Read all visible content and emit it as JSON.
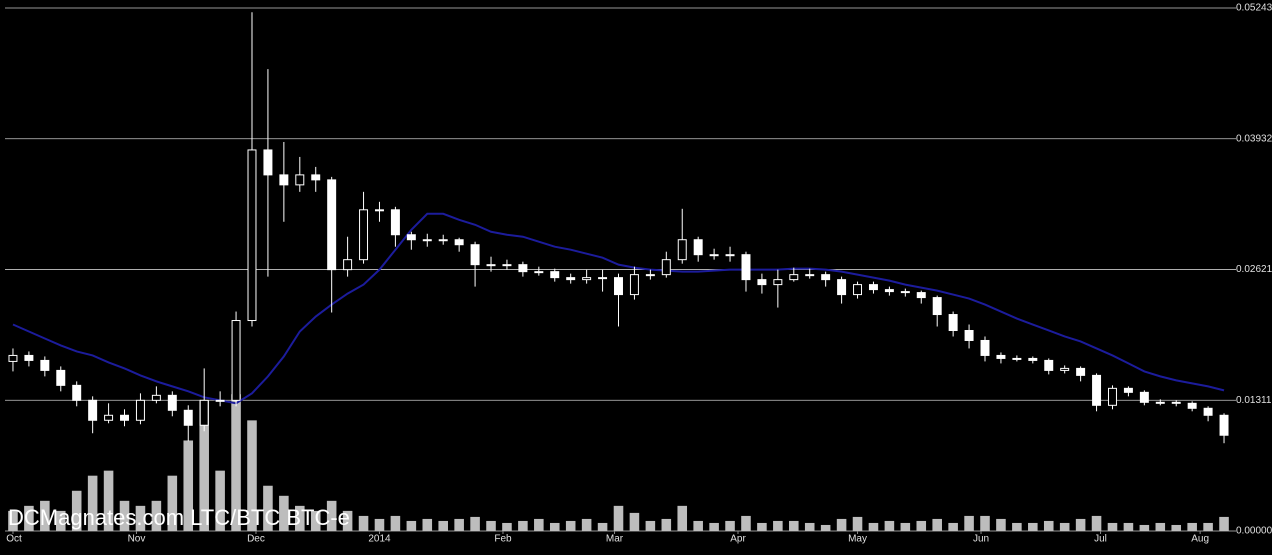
{
  "chart_data": {
    "type": "candlestick",
    "title": "DCMagnates.com LTC/BTC BTC-e",
    "x": [
      0,
      4,
      8,
      12,
      16,
      20,
      24,
      28,
      32,
      36,
      40,
      44,
      48,
      52,
      56,
      60,
      64,
      68,
      72,
      76,
      80,
      84,
      88,
      92,
      96,
      100,
      104,
      108,
      112,
      116,
      120,
      124,
      128,
      132,
      136,
      140,
      144,
      148,
      152,
      156,
      160,
      164,
      168,
      172,
      176,
      180,
      184,
      188,
      192,
      196,
      200,
      204,
      208,
      212,
      216,
      220,
      224,
      228,
      232,
      236,
      240,
      244,
      248,
      252,
      256,
      260,
      264,
      268,
      272,
      276,
      280,
      284,
      288,
      292,
      296,
      300,
      304
    ],
    "open": [
      0.017,
      0.0176,
      0.0171,
      0.0161,
      0.0146,
      0.0131,
      0.0111,
      0.0116,
      0.0111,
      0.0131,
      0.0136,
      0.0121,
      0.0106,
      0.0131,
      0.0131,
      0.0211,
      0.0382,
      0.0357,
      0.0347,
      0.0357,
      0.0352,
      0.0262,
      0.0272,
      0.0322,
      0.0322,
      0.0297,
      0.0292,
      0.0292,
      0.0292,
      0.0287,
      0.0267,
      0.0267,
      0.0267,
      0.026,
      0.026,
      0.0254,
      0.0252,
      0.0254,
      0.0254,
      0.0237,
      0.0257,
      0.0257,
      0.0272,
      0.0292,
      0.0277,
      0.0277,
      0.0277,
      0.0252,
      0.0247,
      0.0252,
      0.0257,
      0.0257,
      0.0252,
      0.0237,
      0.0247,
      0.0242,
      0.024,
      0.0239,
      0.0234,
      0.0217,
      0.0201,
      0.0191,
      0.0176,
      0.0173,
      0.0173,
      0.0171,
      0.0161,
      0.0163,
      0.0156,
      0.0126,
      0.0143,
      0.0139,
      0.0129,
      0.0129,
      0.0128,
      0.0123,
      0.0116
    ],
    "high": [
      0.0183,
      0.018,
      0.0175,
      0.0165,
      0.015,
      0.0135,
      0.0128,
      0.0122,
      0.0138,
      0.0145,
      0.014,
      0.0126,
      0.0163,
      0.014,
      0.022,
      0.052,
      0.0463,
      0.039,
      0.0375,
      0.0365,
      0.0355,
      0.0295,
      0.034,
      0.033,
      0.0325,
      0.03,
      0.0298,
      0.0297,
      0.0294,
      0.029,
      0.0275,
      0.0272,
      0.027,
      0.0265,
      0.0263,
      0.0258,
      0.0262,
      0.0262,
      0.0258,
      0.0265,
      0.0262,
      0.028,
      0.0323,
      0.0295,
      0.0283,
      0.0285,
      0.028,
      0.0258,
      0.0262,
      0.0264,
      0.0263,
      0.026,
      0.0255,
      0.025,
      0.025,
      0.0245,
      0.0243,
      0.0241,
      0.0236,
      0.022,
      0.0207,
      0.0195,
      0.0179,
      0.0176,
      0.0175,
      0.0173,
      0.0166,
      0.0165,
      0.0158,
      0.0146,
      0.0145,
      0.0141,
      0.0132,
      0.0131,
      0.013,
      0.0125,
      0.0118
    ],
    "low": [
      0.016,
      0.0165,
      0.0155,
      0.014,
      0.0125,
      0.0098,
      0.0108,
      0.0105,
      0.0107,
      0.0128,
      0.0115,
      0.009,
      0.01,
      0.0125,
      0.0125,
      0.0205,
      0.0255,
      0.031,
      0.034,
      0.034,
      0.0219,
      0.0255,
      0.0268,
      0.031,
      0.0285,
      0.0282,
      0.0285,
      0.0287,
      0.028,
      0.0245,
      0.026,
      0.0262,
      0.0255,
      0.0256,
      0.025,
      0.0248,
      0.0248,
      0.024,
      0.0205,
      0.0232,
      0.0252,
      0.0254,
      0.0268,
      0.027,
      0.0272,
      0.027,
      0.024,
      0.0238,
      0.0224,
      0.025,
      0.0253,
      0.0245,
      0.0228,
      0.0233,
      0.0238,
      0.0236,
      0.0235,
      0.0228,
      0.0205,
      0.0195,
      0.0183,
      0.017,
      0.0168,
      0.017,
      0.0168,
      0.0157,
      0.0158,
      0.015,
      0.012,
      0.0122,
      0.0135,
      0.0126,
      0.0126,
      0.0125,
      0.012,
      0.011,
      0.0088
    ],
    "close": [
      0.0176,
      0.0171,
      0.0161,
      0.0146,
      0.0131,
      0.0111,
      0.0116,
      0.0111,
      0.0131,
      0.0136,
      0.0121,
      0.0106,
      0.0131,
      0.0131,
      0.0211,
      0.0382,
      0.0357,
      0.0347,
      0.0357,
      0.0352,
      0.0262,
      0.0272,
      0.0322,
      0.0322,
      0.0297,
      0.0292,
      0.0292,
      0.0292,
      0.0287,
      0.0267,
      0.0267,
      0.0267,
      0.026,
      0.026,
      0.0254,
      0.0252,
      0.0254,
      0.0254,
      0.0237,
      0.0257,
      0.0257,
      0.0272,
      0.0292,
      0.0277,
      0.0277,
      0.0277,
      0.0252,
      0.0247,
      0.0252,
      0.0257,
      0.0257,
      0.0252,
      0.0237,
      0.0247,
      0.0242,
      0.024,
      0.0239,
      0.0234,
      0.0217,
      0.0201,
      0.0191,
      0.0176,
      0.0173,
      0.0173,
      0.0171,
      0.0161,
      0.0163,
      0.0156,
      0.0126,
      0.0143,
      0.0139,
      0.0129,
      0.0129,
      0.0128,
      0.0123,
      0.0116,
      0.0096
    ],
    "volume": [
      20,
      25,
      30,
      20,
      40,
      55,
      60,
      30,
      25,
      30,
      55,
      90,
      130,
      60,
      136,
      110,
      45,
      35,
      25,
      20,
      30,
      20,
      15,
      12,
      15,
      10,
      12,
      10,
      12,
      14,
      10,
      8,
      10,
      12,
      8,
      10,
      12,
      8,
      25,
      18,
      10,
      12,
      25,
      10,
      8,
      10,
      15,
      8,
      10,
      10,
      8,
      6,
      12,
      14,
      8,
      10,
      8,
      10,
      12,
      8,
      15,
      15,
      12,
      8,
      8,
      10,
      8,
      12,
      15,
      8,
      8,
      6,
      8,
      6,
      8,
      8,
      14
    ],
    "moving_average": [
      0.0207,
      0.02,
      0.0193,
      0.0186,
      0.018,
      0.0176,
      0.0169,
      0.0163,
      0.0156,
      0.015,
      0.0145,
      0.014,
      0.0134,
      0.0131,
      0.0128,
      0.0138,
      0.0155,
      0.0175,
      0.02,
      0.0215,
      0.0227,
      0.0238,
      0.0247,
      0.0262,
      0.0282,
      0.0302,
      0.0318,
      0.0318,
      0.0312,
      0.0307,
      0.03,
      0.0297,
      0.0295,
      0.029,
      0.0285,
      0.0282,
      0.0278,
      0.0274,
      0.0267,
      0.0264,
      0.0262,
      0.0261,
      0.026,
      0.026,
      0.0261,
      0.0262,
      0.0262,
      0.0262,
      0.0262,
      0.0263,
      0.0263,
      0.0262,
      0.026,
      0.0257,
      0.0254,
      0.0251,
      0.0247,
      0.0244,
      0.0241,
      0.0237,
      0.0233,
      0.0227,
      0.022,
      0.0213,
      0.0207,
      0.0201,
      0.0195,
      0.019,
      0.0183,
      0.0176,
      0.0168,
      0.016,
      0.0155,
      0.0151,
      0.0148,
      0.0145,
      0.0141
    ],
    "up_color": "#000000",
    "down_color": "#ffffff",
    "candle_stroke": "#ffffff",
    "volume_color": "#bdbdbd",
    "ma_color": "#1c1c9c",
    "grid": true,
    "xlim": [
      -2,
      306
    ],
    "xticks": [
      {
        "value": 0,
        "label": "Oct"
      },
      {
        "value": 31,
        "label": "Nov"
      },
      {
        "value": 61,
        "label": "Dec"
      },
      {
        "value": 92,
        "label": "2014"
      },
      {
        "value": 123,
        "label": "Feb"
      },
      {
        "value": 151,
        "label": "Mar"
      },
      {
        "value": 182,
        "label": "Apr"
      },
      {
        "value": 212,
        "label": "May"
      },
      {
        "value": 243,
        "label": "Jun"
      },
      {
        "value": 273,
        "label": "Jul"
      },
      {
        "value": 298,
        "label": "Aug"
      }
    ],
    "ylim": [
      0,
      0.05243
    ],
    "yticks": [
      {
        "value": 0,
        "label": "0.00000"
      },
      0.01311,
      0.02621,
      0.03932,
      0.05243
    ],
    "volume_ylim": [
      0,
      520
    ]
  }
}
